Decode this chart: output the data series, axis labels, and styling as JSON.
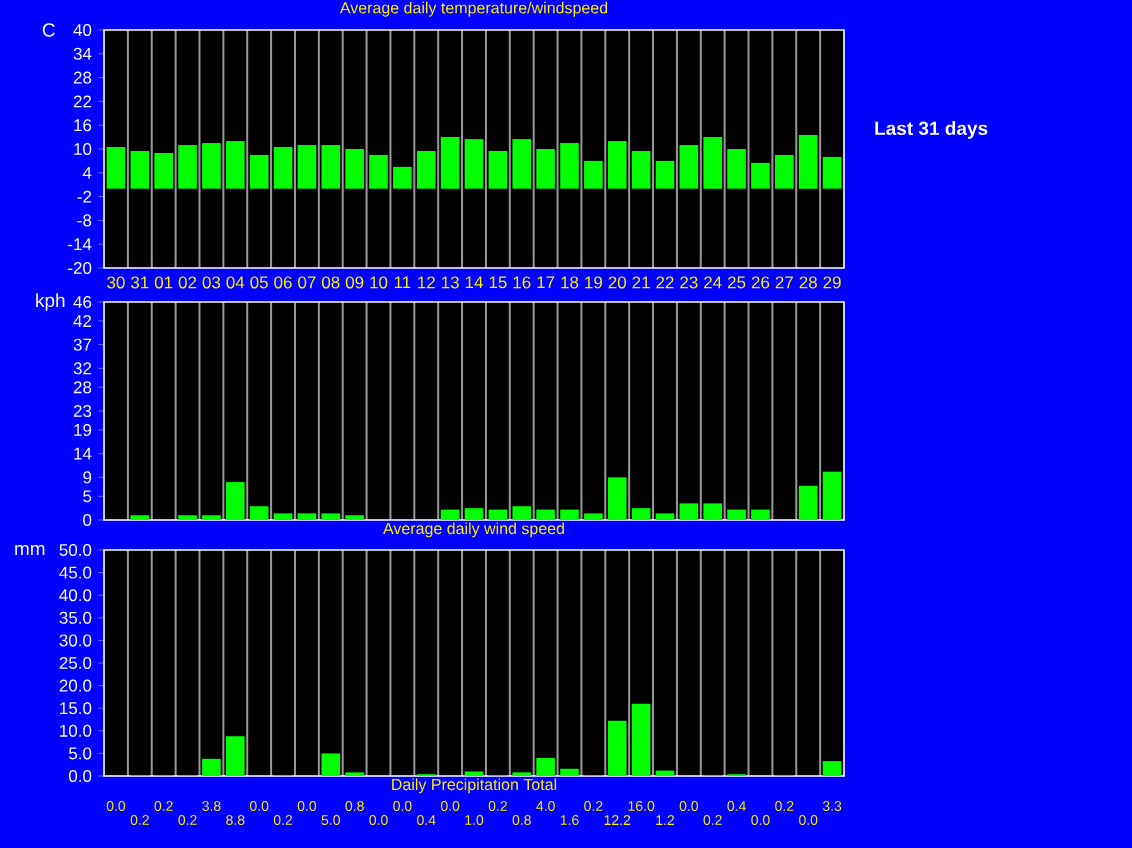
{
  "chart_data": [
    {
      "type": "bar",
      "title": "Average daily temperature/windspeed",
      "ylabel": "C",
      "annotations": [
        "Last 31 days"
      ],
      "categories": [
        "30",
        "31",
        "01",
        "02",
        "03",
        "04",
        "05",
        "06",
        "07",
        "08",
        "09",
        "10",
        "11",
        "12",
        "13",
        "14",
        "15",
        "16",
        "17",
        "18",
        "19",
        "20",
        "21",
        "22",
        "23",
        "24",
        "25",
        "26",
        "27",
        "28",
        "29"
      ],
      "values": [
        10.5,
        9.5,
        9,
        11,
        11.5,
        12,
        8.5,
        10.5,
        11,
        11,
        10,
        8.5,
        5.5,
        9.5,
        13,
        12.5,
        9.5,
        12.5,
        10,
        11.5,
        7,
        12,
        9.5,
        7,
        11,
        13,
        10,
        6.5,
        8.5,
        13.5,
        8
      ],
      "color": "#00ff00",
      "ylim": [
        -20,
        40
      ],
      "yticks": [
        -20,
        -14,
        -8,
        -2,
        4,
        10,
        16,
        22,
        28,
        34,
        40
      ],
      "grid": "x"
    },
    {
      "type": "bar",
      "xlabel": "Average daily wind speed",
      "ylabel": "kph",
      "categories": [
        "30",
        "31",
        "01",
        "02",
        "03",
        "04",
        "05",
        "06",
        "07",
        "08",
        "09",
        "10",
        "11",
        "12",
        "13",
        "14",
        "15",
        "16",
        "17",
        "18",
        "19",
        "20",
        "21",
        "22",
        "23",
        "24",
        "25",
        "26",
        "27",
        "28",
        "29"
      ],
      "values": [
        0,
        1,
        0,
        1,
        1,
        8,
        2.9,
        1.4,
        1.4,
        1.4,
        1,
        0,
        0,
        0,
        2.2,
        2.5,
        2.2,
        2.9,
        2.2,
        2.2,
        1.4,
        9,
        2.5,
        1.4,
        3.5,
        3.5,
        2.2,
        2.2,
        0,
        7.2,
        10.2
      ],
      "color": "#00ff00",
      "ylim": [
        0,
        46
      ],
      "yticks": [
        0,
        5,
        9,
        14,
        19,
        23,
        28,
        32,
        37,
        42,
        46
      ],
      "grid": "x",
      "tick_labels": "y"
    },
    {
      "type": "bar",
      "xlabel": "Daily Precipitation Total",
      "ylabel": "mm",
      "categories": [
        "30",
        "31",
        "01",
        "02",
        "03",
        "04",
        "05",
        "06",
        "07",
        "08",
        "09",
        "10",
        "11",
        "12",
        "13",
        "14",
        "15",
        "16",
        "17",
        "18",
        "19",
        "20",
        "21",
        "22",
        "23",
        "24",
        "25",
        "26",
        "27",
        "28",
        "29"
      ],
      "values": [
        0,
        0.2,
        0.2,
        0.2,
        3.8,
        8.8,
        0,
        0.2,
        0,
        5,
        0.8,
        0,
        0,
        0.4,
        0,
        1,
        0.2,
        0.8,
        4,
        1.6,
        0.2,
        12.2,
        16,
        1.2,
        0,
        0.2,
        0.4,
        0,
        0.2,
        0,
        3.3
      ],
      "value_labels": [
        "0.0",
        "0.2",
        "0.2",
        "0.2",
        "3.8",
        "8.8",
        "0.0",
        "0.2",
        "0.0",
        "5.0",
        "0.8",
        "0.0",
        "0.0",
        "0.4",
        "0.0",
        "1.0",
        "0.2",
        "0.8",
        "4.0",
        "1.6",
        "0.2",
        "12.2",
        "16.0",
        "1.2",
        "0.0",
        "0.2",
        "0.4",
        "0.0",
        "0.2",
        "0.0",
        "3.3"
      ],
      "color": "#00ff00",
      "ylim": [
        0,
        50
      ],
      "yticks": [
        {
          "value": 0,
          "label": "0.0"
        },
        {
          "value": 5,
          "label": "5.0"
        },
        {
          "value": 10,
          "label": "10.0"
        },
        {
          "value": 15,
          "label": "15.0"
        },
        {
          "value": 20,
          "label": "20.0"
        },
        {
          "value": 25,
          "label": "25.0"
        },
        {
          "value": 30,
          "label": "30.0"
        },
        {
          "value": 35,
          "label": "35.0"
        },
        {
          "value": 40,
          "label": "40.0"
        },
        {
          "value": 45,
          "label": "45.0"
        },
        {
          "value": 50,
          "label": "50.0"
        }
      ],
      "grid": "x",
      "tick_labels": "y"
    }
  ]
}
